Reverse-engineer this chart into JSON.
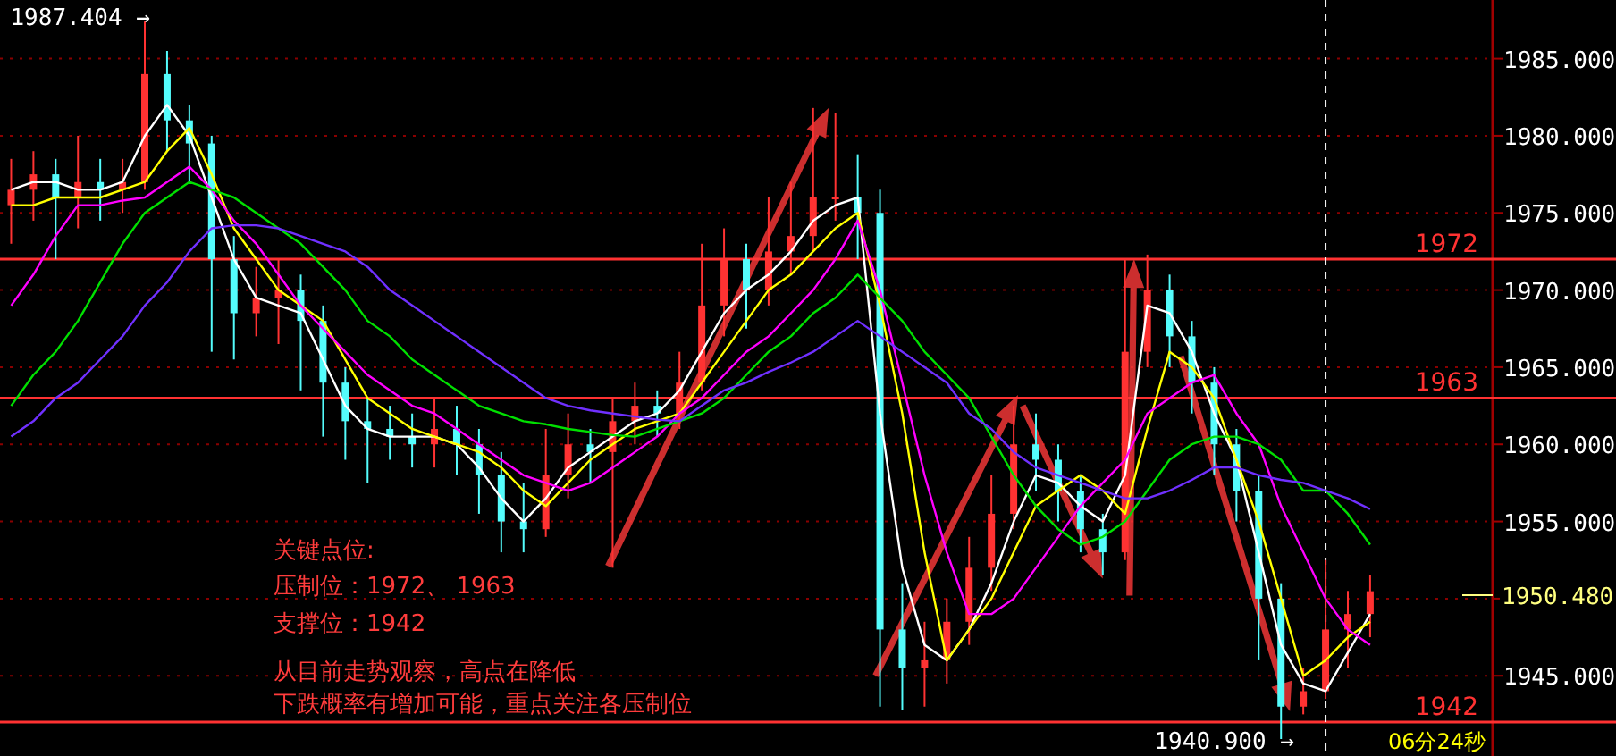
{
  "chart_data": {
    "type": "candlestick",
    "categories": [
      null,
      null,
      null,
      null,
      null,
      null,
      null,
      null,
      null,
      null,
      null,
      null,
      null,
      null,
      null,
      null,
      null,
      null,
      null,
      null,
      null,
      null,
      null,
      null,
      null,
      null,
      null,
      null,
      null,
      null,
      null,
      null,
      null,
      null,
      null,
      null,
      null,
      null,
      null,
      null,
      null,
      null,
      null,
      null,
      null,
      null,
      null,
      null,
      null,
      null,
      null,
      null,
      null,
      null,
      null,
      null,
      null,
      null,
      null,
      null,
      null,
      null,
      null,
      null,
      null,
      null,
      null
    ],
    "ohlc": [
      [
        1975.5,
        1978.5,
        1973,
        1976.5
      ],
      [
        1976.5,
        1979,
        1974.5,
        1977.5
      ],
      [
        1977.5,
        1978.5,
        1972,
        1976
      ],
      [
        1976,
        1980,
        1974,
        1977
      ],
      [
        1977,
        1978.5,
        1974.5,
        1976.5
      ],
      [
        1976.5,
        1978.5,
        1975,
        1977
      ],
      [
        1977,
        1987.404,
        1976.5,
        1984
      ],
      [
        1984,
        1985.5,
        1979,
        1981
      ],
      [
        1981,
        1982,
        1977,
        1979.5
      ],
      [
        1979.5,
        1980,
        1966,
        1972
      ],
      [
        1972,
        1973.5,
        1965.5,
        1968.5
      ],
      [
        1968.5,
        1971.5,
        1967,
        1969.5
      ],
      [
        1969.5,
        1972,
        1966.5,
        1970
      ],
      [
        1970,
        1971,
        1963.5,
        1968
      ],
      [
        1968,
        1969,
        1960.5,
        1964
      ],
      [
        1964,
        1965,
        1959,
        1961.5
      ],
      [
        1961.5,
        1963,
        1957.5,
        1961
      ],
      [
        1961,
        1962.5,
        1959,
        1960.5
      ],
      [
        1960.5,
        1962,
        1958.5,
        1960
      ],
      [
        1960,
        1963,
        1958.5,
        1961
      ],
      [
        1961,
        1962.5,
        1958,
        1960
      ],
      [
        1960,
        1961,
        1955.5,
        1958
      ],
      [
        1958,
        1959.5,
        1953,
        1955
      ],
      [
        1955,
        1957.5,
        1953,
        1954.5
      ],
      [
        1954.5,
        1961,
        1954,
        1958
      ],
      [
        1958,
        1962,
        1956.5,
        1960
      ],
      [
        1960,
        1961,
        1957.5,
        1959.5
      ],
      [
        1959.5,
        1963,
        1952,
        1961.5
      ],
      [
        1961.5,
        1964,
        1960,
        1962.5
      ],
      [
        1962.5,
        1963.5,
        1960.5,
        1962
      ],
      [
        1962,
        1966,
        1961,
        1964
      ],
      [
        1964,
        1973,
        1963.5,
        1969
      ],
      [
        1969,
        1974,
        1967,
        1972
      ],
      [
        1972,
        1973,
        1967.5,
        1970
      ],
      [
        1970,
        1976,
        1969,
        1972.5
      ],
      [
        1972.5,
        1977,
        1971,
        1973.5
      ],
      [
        1973.5,
        1981.8,
        1972.5,
        1976
      ],
      [
        1976,
        1981.5,
        1974.5,
        1976
      ],
      [
        1976,
        1978.8,
        1972,
        1975
      ],
      [
        1975,
        1976.5,
        1943,
        1948
      ],
      [
        1948,
        1951,
        1942.8,
        1945.5
      ],
      [
        1945.5,
        1948.5,
        1943,
        1946
      ],
      [
        1946,
        1950,
        1944.5,
        1948.5
      ],
      [
        1948.5,
        1954,
        1947,
        1952
      ],
      [
        1952,
        1958,
        1950.5,
        1955.5
      ],
      [
        1955.5,
        1962.5,
        1954.5,
        1960
      ],
      [
        1960,
        1962,
        1957,
        1959
      ],
      [
        1959,
        1960,
        1955,
        1957
      ],
      [
        1957,
        1958,
        1953,
        1954.5
      ],
      [
        1954.5,
        1955.5,
        1951.5,
        1953
      ],
      [
        1953,
        1972,
        1952.5,
        1966
      ],
      [
        1966,
        1972.3,
        1965,
        1970
      ],
      [
        1970,
        1971,
        1965,
        1967
      ],
      [
        1967,
        1968,
        1962,
        1964
      ],
      [
        1964,
        1965,
        1958,
        1960
      ],
      [
        1960,
        1961,
        1955,
        1957
      ],
      [
        1957,
        1958,
        1946,
        1950
      ],
      [
        1950,
        1951,
        1940.9,
        1943
      ],
      [
        1943,
        1945.5,
        1942.5,
        1944
      ],
      [
        1944,
        1952.5,
        1943.5,
        1948
      ],
      [
        1948,
        1950.5,
        1945.5,
        1949
      ],
      [
        1949,
        1951.5,
        1947.5,
        1950.48
      ],
      null,
      null,
      null,
      null,
      null
    ],
    "series": [
      {
        "type": "line",
        "color": "#ffffff",
        "values": [
          1976.5,
          1977,
          1977,
          1976.5,
          1976.5,
          1977,
          1980,
          1982,
          1980,
          1976,
          1972,
          1969.5,
          1969,
          1968.5,
          1965.5,
          1962.5,
          1961,
          1960.5,
          1960.5,
          1960.5,
          1960,
          1958.5,
          1956.5,
          1955,
          1956.5,
          1958.5,
          1959.5,
          1960.5,
          1961.5,
          1962,
          1963.5,
          1966,
          1968.5,
          1970,
          1971,
          1972.5,
          1974.5,
          1975.5,
          1976,
          1962,
          1952,
          1947,
          1946,
          1948,
          1951,
          1955,
          1958,
          1957.5,
          1956,
          1955,
          1958,
          1969,
          1968.5,
          1966,
          1962,
          1959,
          1953,
          1947,
          1944.5,
          1944,
          1946.5,
          1949,
          null,
          null,
          null,
          null,
          null
        ]
      },
      {
        "type": "line",
        "color": "#ffff00",
        "values": [
          1975.5,
          1975.5,
          1976,
          1976,
          1976,
          1976.5,
          1977,
          1979,
          1980.5,
          1977.5,
          1974,
          1972,
          1970,
          1969,
          1968,
          1965.5,
          1963,
          1962,
          1961,
          1960.5,
          1960,
          1959.5,
          1958.5,
          1957,
          1956,
          1957.5,
          1959,
          1960,
          1961,
          1961.5,
          1962,
          1964,
          1966,
          1968,
          1970,
          1971,
          1972.5,
          1974,
          1975,
          1969,
          1962,
          1953,
          1946,
          1948,
          1950,
          1953,
          1956,
          1957,
          1958,
          1957,
          1955.5,
          1961,
          1966,
          1965,
          1963,
          1959,
          1955,
          1950,
          1945,
          1946,
          1947.5,
          1948.5,
          null,
          null,
          null,
          null,
          null
        ]
      },
      {
        "type": "line",
        "color": "#ff00ff",
        "values": [
          1969,
          1971,
          1973.5,
          1975.5,
          1975.5,
          1975.8,
          1976,
          1977,
          1978,
          1976.5,
          1974.5,
          1973,
          1971,
          1969,
          1967.5,
          1966,
          1964.5,
          1963.5,
          1962.5,
          1962,
          1961,
          1960,
          1959,
          1958,
          1957.5,
          1957,
          1957.5,
          1958.5,
          1959.5,
          1960.5,
          1962,
          1963,
          1964.5,
          1966,
          1967,
          1968.5,
          1970,
          1972,
          1974.5,
          1970,
          1964,
          1958,
          1953,
          1949,
          1949,
          1950,
          1952,
          1954,
          1956,
          1957.5,
          1959,
          1962,
          1963,
          1964,
          1964.5,
          1962,
          1960,
          1956,
          1953,
          1950,
          1948,
          1947,
          null,
          null,
          null,
          null,
          null
        ]
      },
      {
        "type": "line",
        "color": "#00e000",
        "values": [
          1962.5,
          1964.5,
          1966,
          1968,
          1970.5,
          1973,
          1975,
          1976,
          1977,
          1976.5,
          1976,
          1975,
          1974,
          1973,
          1971.5,
          1970,
          1968,
          1967,
          1965.5,
          1964.5,
          1963.5,
          1962.5,
          1962,
          1961.5,
          1961.3,
          1961,
          1960.8,
          1960.6,
          1960.5,
          1961,
          1961.5,
          1962,
          1963,
          1964.5,
          1966,
          1967,
          1968.5,
          1969.5,
          1971,
          1969.5,
          1968,
          1966,
          1964.5,
          1963,
          1960.5,
          1958,
          1956,
          1954.5,
          1953.5,
          1954,
          1955,
          1957,
          1959,
          1960,
          1960.5,
          1960.5,
          1960,
          1959,
          1957,
          1957,
          1955.5,
          1953.5,
          null,
          null,
          null,
          null,
          null
        ]
      },
      {
        "type": "line",
        "color": "#7030ff",
        "values": [
          1960.5,
          1961.5,
          1963,
          1964,
          1965.5,
          1967,
          1969,
          1970.5,
          1972.5,
          1974,
          1974.2,
          1974.2,
          1974,
          1973.5,
          1973,
          1972.5,
          1971.5,
          1970,
          1969,
          1968,
          1967,
          1966,
          1965,
          1964,
          1963,
          1962.5,
          1962.2,
          1962,
          1961.8,
          1961.6,
          1961.5,
          1962.5,
          1963.5,
          1964,
          1964.7,
          1965.3,
          1966,
          1967,
          1968,
          1967,
          1966,
          1965,
          1964,
          1962,
          1961,
          1959.5,
          1958.5,
          1958,
          1957.5,
          1957,
          1956.5,
          1956.5,
          1957,
          1957.7,
          1958.5,
          1958.5,
          1958,
          1957.7,
          1957.5,
          1957,
          1956.5,
          1955.8,
          null,
          null,
          null,
          null,
          null
        ]
      }
    ],
    "ylim": [
      1939.8,
      1988.8
    ],
    "yticks": [
      {
        "value": 1945,
        "label": "1945.000"
      },
      {
        "value": 1950,
        "label": null
      },
      {
        "value": 1955,
        "label": "1955.000"
      },
      {
        "value": 1960,
        "label": "1960.000"
      },
      {
        "value": 1965,
        "label": "1965.000"
      },
      {
        "value": 1970,
        "label": "1970.000"
      },
      {
        "value": 1975,
        "label": "1975.000"
      },
      {
        "value": 1980,
        "label": "1980.000"
      },
      {
        "value": 1985,
        "label": "1985.000"
      }
    ],
    "grid": "y",
    "tick_labels": "y",
    "ref_lines": [
      {
        "axis": "y",
        "value": 1972,
        "label": "1972",
        "color": "#ff3232"
      },
      {
        "axis": "y",
        "value": 1963,
        "label": "1963",
        "color": "#ff3232"
      },
      {
        "axis": "y",
        "value": 1942,
        "label": "1942",
        "color": "#ff3232"
      }
    ],
    "annotations": [
      "关键点位:",
      "压制位：1972、 1963",
      "支撑位：1942",
      "从目前走势观察，高点在降低",
      "下跌概率有增加可能，重点关注各压制位",
      "1987.404 →",
      "1940.900 →",
      "1950.480",
      "06分24秒"
    ]
  }
}
